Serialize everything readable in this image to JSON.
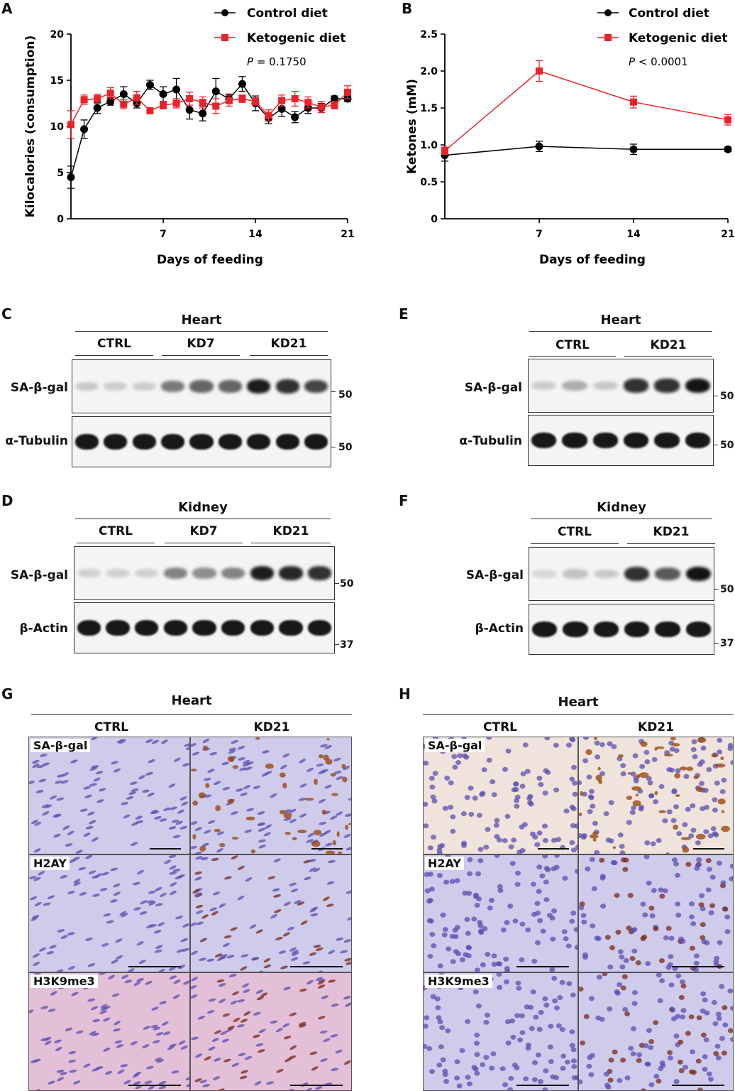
{
  "chart_data": [
    {
      "type": "line",
      "panel": "A",
      "xlabel": "Days of feeding",
      "ylabel": "Kilocalories (consumption)",
      "xticks": [
        "7",
        "14",
        "21"
      ],
      "yticks": [
        "0",
        "5",
        "10",
        "15",
        "20"
      ],
      "xlim": [
        0,
        21
      ],
      "ylim": [
        0,
        20
      ],
      "annotation_p": "P",
      "annotation_rest": " = 0.1750",
      "series": [
        {
          "name": "Control diet",
          "color": "#000000",
          "marker": "circle",
          "x": [
            0,
            1,
            2,
            3,
            4,
            5,
            6,
            7,
            8,
            9,
            10,
            11,
            12,
            13,
            14,
            15,
            16,
            17,
            18,
            19,
            20,
            21
          ],
          "y": [
            4.5,
            9.7,
            12.0,
            12.7,
            13.5,
            12.5,
            14.5,
            13.5,
            14.0,
            11.8,
            11.4,
            13.8,
            13.0,
            14.6,
            12.5,
            10.9,
            11.9,
            11.0,
            12.0,
            12.0,
            13.0,
            13.0
          ],
          "err": [
            1.2,
            1.0,
            0.6,
            0.4,
            0.8,
            0.5,
            0.5,
            0.8,
            1.2,
            1.0,
            0.8,
            1.4,
            0.5,
            0.8,
            0.8,
            0.6,
            0.8,
            0.6,
            0.6,
            0.5,
            0.3,
            0.3
          ]
        },
        {
          "name": "Ketogenic diet",
          "color": "#e8232a",
          "marker": "square",
          "x": [
            0,
            1,
            2,
            3,
            4,
            5,
            6,
            7,
            8,
            9,
            10,
            11,
            12,
            13,
            14,
            15,
            16,
            17,
            18,
            19,
            20,
            21
          ],
          "y": [
            10.2,
            12.9,
            13.0,
            13.6,
            12.4,
            13.1,
            11.7,
            12.3,
            12.5,
            13.0,
            12.6,
            12.2,
            12.8,
            13.0,
            12.7,
            11.2,
            12.8,
            13.0,
            12.6,
            12.1,
            12.3,
            13.7
          ],
          "err": [
            1.5,
            0.5,
            0.5,
            0.6,
            0.5,
            0.7,
            0.3,
            0.4,
            0.5,
            0.7,
            0.6,
            0.8,
            0.6,
            0.4,
            0.4,
            0.6,
            0.6,
            0.8,
            0.6,
            0.6,
            0.4,
            0.7
          ]
        }
      ]
    },
    {
      "type": "line",
      "panel": "B",
      "xlabel": "Days of feeding",
      "ylabel": "Ketones (mM)",
      "xticks": [
        "7",
        "14",
        "21"
      ],
      "yticks": [
        "0",
        "0.5",
        "1.0",
        "1.5",
        "2.0",
        "2.5"
      ],
      "xlim": [
        0,
        21
      ],
      "ylim": [
        0,
        2.5
      ],
      "annotation_p": "P",
      "annotation_rest": " < 0.0001",
      "series": [
        {
          "name": "Control diet",
          "color": "#000000",
          "marker": "circle",
          "x": [
            0,
            7,
            14,
            21
          ],
          "y": [
            0.86,
            0.98,
            0.94,
            0.94
          ],
          "err": [
            0.08,
            0.07,
            0.07,
            0.03
          ]
        },
        {
          "name": "Ketogenic diet",
          "color": "#e8232a",
          "marker": "square",
          "x": [
            0,
            7,
            14,
            21
          ],
          "y": [
            0.92,
            2.0,
            1.58,
            1.34
          ],
          "err": [
            0.05,
            0.14,
            0.08,
            0.07
          ]
        }
      ]
    }
  ],
  "panels": {
    "A": "A",
    "B": "B",
    "C": "C",
    "D": "D",
    "E": "E",
    "F": "F",
    "G": "G",
    "H": "H"
  },
  "blots": {
    "C": {
      "title": "Heart",
      "groups": [
        "CTRL",
        "KD7",
        "KD21"
      ],
      "rows": [
        "SA-β-gal",
        "α-Tubulin"
      ],
      "mw": [
        "50",
        "50"
      ],
      "lanes_top": [
        0.12,
        0.1,
        0.1,
        0.5,
        0.6,
        0.6,
        0.95,
        0.85,
        0.75
      ]
    },
    "D": {
      "title": "Kidney",
      "groups": [
        "CTRL",
        "KD7",
        "KD21"
      ],
      "rows": [
        "SA-β-gal",
        "β-Actin"
      ],
      "mw": [
        "50",
        "37"
      ],
      "lanes_top": [
        0.08,
        0.08,
        0.08,
        0.45,
        0.4,
        0.45,
        0.95,
        0.9,
        0.85
      ]
    },
    "E": {
      "title": "Heart",
      "groups": [
        "CTRL",
        "KD21"
      ],
      "rows": [
        "SA-β-gal",
        "α-Tubulin"
      ],
      "mw": [
        "50",
        "50"
      ],
      "lanes_top": [
        0.1,
        0.25,
        0.12,
        0.85,
        0.85,
        1.0
      ]
    },
    "F": {
      "title": "Kidney",
      "groups": [
        "CTRL",
        "KD21"
      ],
      "rows": [
        "SA-β-gal",
        "β-Actin"
      ],
      "mw": [
        "50",
        "37"
      ],
      "lanes_top": [
        0.05,
        0.15,
        0.12,
        0.85,
        0.65,
        1.0
      ]
    }
  },
  "histology": {
    "G": {
      "title": "Heart",
      "columns": [
        "CTRL",
        "KD21"
      ],
      "rows": [
        "SA-β-gal",
        "H2AY",
        "H3K9me3"
      ]
    },
    "H": {
      "title": "Heart",
      "columns": [
        "CTRL",
        "KD21"
      ],
      "rows": [
        "SA-β-gal",
        "H2AY",
        "H3K9me3"
      ]
    }
  },
  "colors": {
    "control": "#000000",
    "keto": "#e8232a",
    "he_pink": "#e8c5dc",
    "hema_blue": "#b8b6e2",
    "dab_brown": "#8a3a12"
  }
}
